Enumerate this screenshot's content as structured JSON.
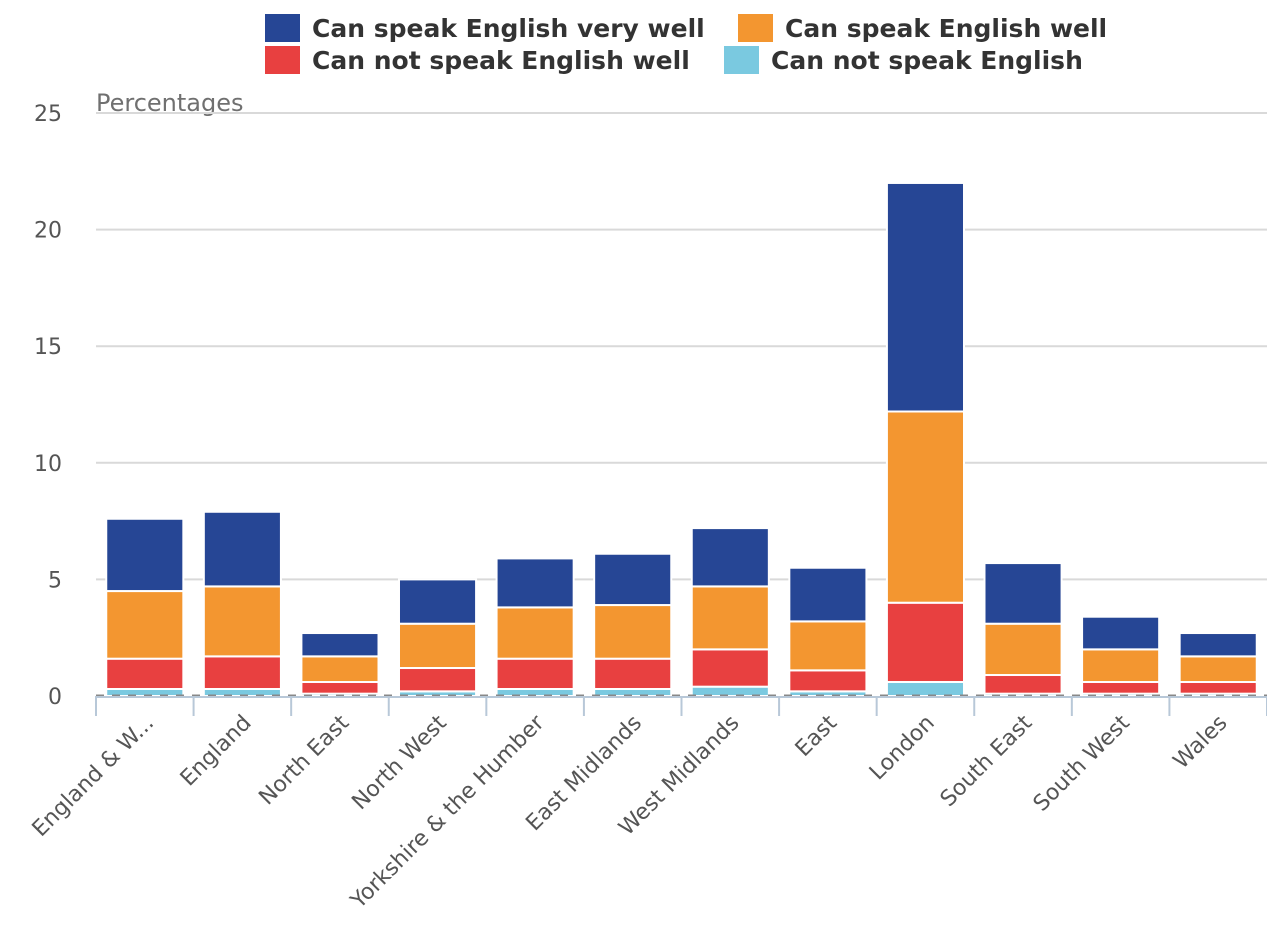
{
  "chart_data": {
    "type": "bar",
    "stacked": true,
    "title": "",
    "xlabel": "",
    "ylabel": "Percentages",
    "ylim": [
      0,
      25
    ],
    "yticks": [
      0,
      5,
      10,
      15,
      20,
      25
    ],
    "grid": true,
    "legend_position": "top",
    "categories": [
      "England & W...",
      "England",
      "North East",
      "North West",
      "Yorkshire & the Humber",
      "East Midlands",
      "West Midlands",
      "East",
      "London",
      "South East",
      "South West",
      "Wales"
    ],
    "series": [
      {
        "name": "Can not speak English",
        "color": "#7ac9e0",
        "values": [
          0.3,
          0.3,
          0.1,
          0.2,
          0.3,
          0.3,
          0.4,
          0.2,
          0.6,
          0.1,
          0.1,
          0.1
        ]
      },
      {
        "name": "Can not speak English well",
        "color": "#e84040",
        "values": [
          1.3,
          1.4,
          0.5,
          1.0,
          1.3,
          1.3,
          1.6,
          0.9,
          3.4,
          0.8,
          0.5,
          0.5
        ]
      },
      {
        "name": "Can speak English well",
        "color": "#f39630",
        "values": [
          2.9,
          3.0,
          1.1,
          1.9,
          2.2,
          2.3,
          2.7,
          2.1,
          8.2,
          2.2,
          1.4,
          1.1
        ]
      },
      {
        "name": "Can speak English very well",
        "color": "#264695",
        "values": [
          3.1,
          3.2,
          1.0,
          1.9,
          2.1,
          2.2,
          2.5,
          2.3,
          9.8,
          2.6,
          1.4,
          1.0
        ]
      }
    ]
  },
  "legend": {
    "items": [
      {
        "label": "Can speak English very well",
        "color": "#264695"
      },
      {
        "label": "Can speak English well",
        "color": "#f39630"
      },
      {
        "label": "Can not speak English well",
        "color": "#e84040"
      },
      {
        "label": "Can not speak English",
        "color": "#7ac9e0"
      }
    ]
  },
  "colors": {
    "grid": "#d9d9d9",
    "axis": "#b8c8d8",
    "tick_text": "#555555",
    "ylabel_text": "#707070",
    "legend_text": "#333333"
  }
}
